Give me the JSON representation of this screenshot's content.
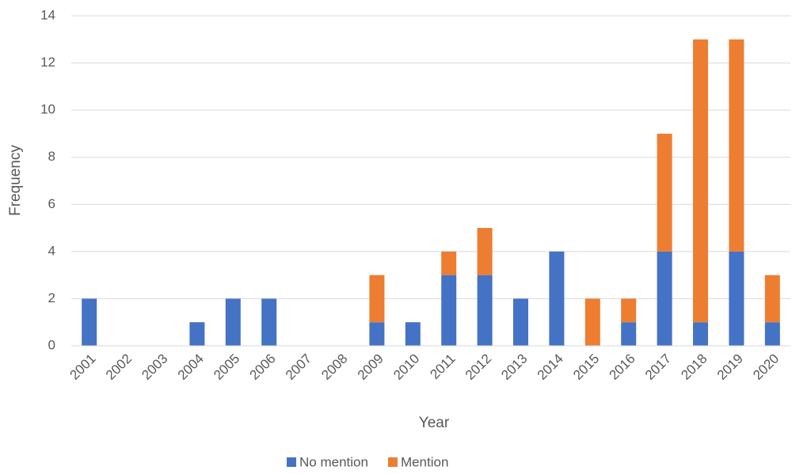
{
  "chart_data": {
    "type": "stacked_bar",
    "x_label": "Year",
    "y_label": "Frequency",
    "categories": [
      "2001",
      "2002",
      "2003",
      "2004",
      "2005",
      "2006",
      "2007",
      "2008",
      "2009",
      "2010",
      "2011",
      "2012",
      "2013",
      "2014",
      "2015",
      "2016",
      "2017",
      "2018",
      "2019",
      "2020"
    ],
    "series": [
      {
        "name": "No mention",
        "color": "#4472c4",
        "values": [
          2,
          0,
          0,
          1,
          2,
          2,
          0,
          0,
          1,
          1,
          3,
          3,
          2,
          4,
          0,
          1,
          4,
          1,
          4,
          1
        ]
      },
      {
        "name": "Mention",
        "color": "#ed7d31",
        "values": [
          0,
          0,
          0,
          0,
          0,
          0,
          0,
          0,
          2,
          0,
          1,
          2,
          0,
          0,
          2,
          1,
          5,
          12,
          9,
          2
        ]
      }
    ],
    "ylim": [
      0,
      14
    ],
    "yticks": [
      0,
      2,
      4,
      6,
      8,
      10,
      12,
      14
    ],
    "grid": true,
    "legend": "bottom"
  }
}
